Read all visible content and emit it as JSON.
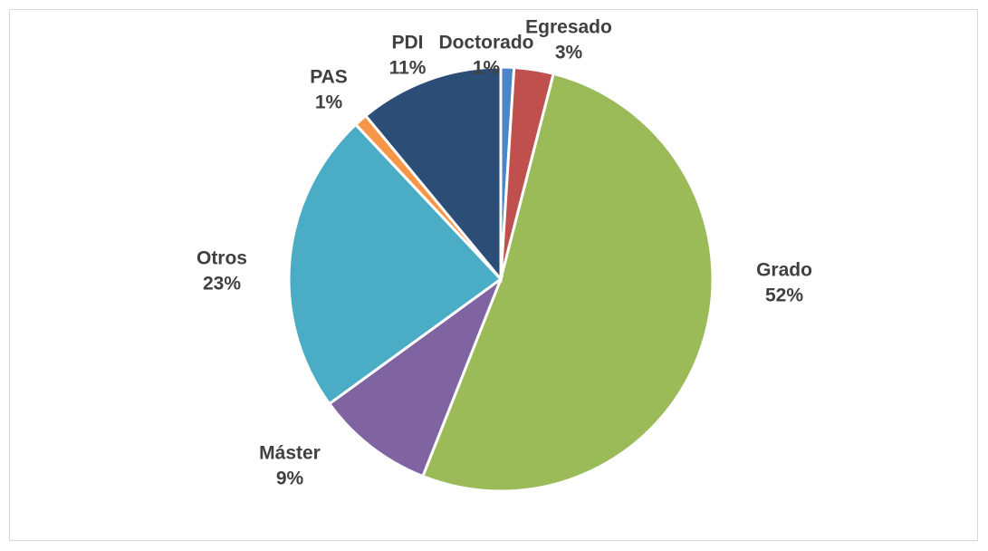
{
  "chart_data": {
    "type": "pie",
    "categories": [
      "Doctorado",
      "Egresado",
      "Grado",
      "Máster",
      "Otros",
      "PAS",
      "PDI"
    ],
    "values": [
      1,
      3,
      52,
      9,
      23,
      1,
      11
    ],
    "value_labels": [
      "1%",
      "3%",
      "52%",
      "9%",
      "23%",
      "1%",
      "11%"
    ],
    "colors": [
      "#4a86c8",
      "#c0504d",
      "#9bbb59",
      "#8064a2",
      "#4bacc6",
      "#f79646",
      "#2c4d75"
    ]
  }
}
